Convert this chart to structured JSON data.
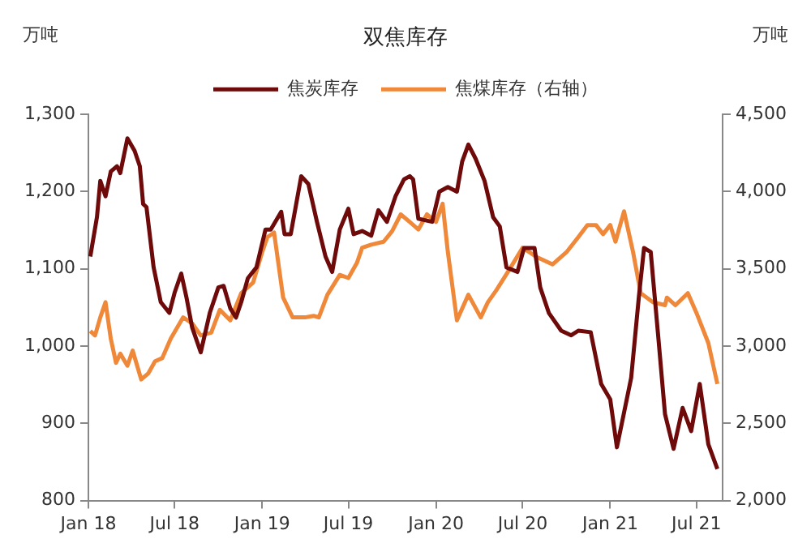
{
  "chart_data": {
    "type": "line",
    "title": "双焦库存",
    "ylabel": "万吨",
    "y2label": "万吨",
    "xlim": [
      "2018-01-01",
      "2021-08-25"
    ],
    "xticks": [
      {
        "value": "2018-01",
        "label": "Jan 18"
      },
      {
        "value": "2018-07",
        "label": "Jul 18"
      },
      {
        "value": "2019-01",
        "label": "Jan 19"
      },
      {
        "value": "2019-07",
        "label": "Jul 19"
      },
      {
        "value": "2020-01",
        "label": "Jan 20"
      },
      {
        "value": "2020-07",
        "label": "Jul 20"
      },
      {
        "value": "2021-01",
        "label": "Jan 21"
      },
      {
        "value": "2021-07",
        "label": "Jul 21"
      }
    ],
    "ylim": [
      800,
      1300
    ],
    "yticks": [
      800,
      900,
      {
        "value": 1000,
        "label": "1,000"
      },
      {
        "value": 1100,
        "label": "1,100"
      },
      {
        "value": 1200,
        "label": "1,200"
      },
      {
        "value": 1300,
        "label": "1,300"
      }
    ],
    "y2lim": [
      2000,
      4500
    ],
    "y2ticks": [
      {
        "value": 2000,
        "label": "2,000"
      },
      {
        "value": 2500,
        "label": "2,500"
      },
      {
        "value": 3000,
        "label": "3,000"
      },
      {
        "value": 3500,
        "label": "3,500"
      },
      {
        "value": 4000,
        "label": "4,000"
      },
      {
        "value": 4500,
        "label": "4,500"
      }
    ],
    "legend": "top",
    "grid": false,
    "marker": "none",
    "line_style": "solid",
    "series": [
      {
        "name": "焦炭库存",
        "color": "#6e0a0a",
        "x": [
          "2018-01-05",
          "2018-01-19",
          "2018-01-26",
          "2018-02-06",
          "2018-02-17",
          "2018-03-02",
          "2018-03-09",
          "2018-03-24",
          "2018-04-08",
          "2018-04-19",
          "2018-04-26",
          "2018-05-03",
          "2018-05-18",
          "2018-06-02",
          "2018-06-20",
          "2018-07-01",
          "2018-07-15",
          "2018-07-26",
          "2018-08-07",
          "2018-08-25",
          "2018-09-13",
          "2018-10-01",
          "2018-10-12",
          "2018-10-26",
          "2018-11-07",
          "2018-11-18",
          "2018-12-02",
          "2018-12-20",
          "2019-01-08",
          "2019-01-19",
          "2019-02-10",
          "2019-02-17",
          "2019-03-02",
          "2019-03-24",
          "2019-04-08",
          "2019-04-26",
          "2019-05-14",
          "2019-05-28",
          "2019-06-13",
          "2019-07-01",
          "2019-07-12",
          "2019-07-30",
          "2019-08-18",
          "2019-09-02",
          "2019-09-20",
          "2019-10-08",
          "2019-10-26",
          "2019-11-07",
          "2019-11-14",
          "2019-11-25",
          "2019-12-24",
          "2020-01-08",
          "2020-01-26",
          "2020-02-14",
          "2020-02-25",
          "2020-03-09",
          "2020-03-24",
          "2020-04-12",
          "2020-04-30",
          "2020-05-14",
          "2020-05-28",
          "2020-06-20",
          "2020-07-04",
          "2020-07-26",
          "2020-08-07",
          "2020-08-25",
          "2020-09-20",
          "2020-10-11",
          "2020-10-26",
          "2020-11-21",
          "2020-12-13",
          "2021-01-01",
          "2021-01-15",
          "2021-02-14",
          "2021-03-02",
          "2021-03-13",
          "2021-03-27",
          "2021-04-11",
          "2021-04-26",
          "2021-05-14",
          "2021-06-02",
          "2021-06-20",
          "2021-07-08",
          "2021-07-26",
          "2021-08-14"
        ],
        "values": [
          1116,
          1167,
          1214,
          1194,
          1226,
          1233,
          1224,
          1269,
          1253,
          1233,
          1184,
          1180,
          1102,
          1057,
          1043,
          1069,
          1094,
          1063,
          1024,
          992,
          1043,
          1076,
          1078,
          1049,
          1037,
          1057,
          1088,
          1102,
          1151,
          1151,
          1174,
          1145,
          1145,
          1220,
          1210,
          1161,
          1116,
          1096,
          1151,
          1178,
          1145,
          1149,
          1143,
          1176,
          1161,
          1194,
          1216,
          1220,
          1216,
          1165,
          1161,
          1200,
          1206,
          1200,
          1239,
          1261,
          1243,
          1214,
          1167,
          1155,
          1102,
          1096,
          1127,
          1127,
          1076,
          1043,
          1020,
          1014,
          1020,
          1018,
          951,
          931,
          869,
          959,
          1063,
          1127,
          1122,
          1018,
          912,
          867,
          920,
          890,
          951,
          873,
          841
        ]
      },
      {
        "name": "焦煤库存（右轴）",
        "color": "#f0883a",
        "axis": "y2",
        "x": [
          "2018-01-05",
          "2018-01-15",
          "2018-01-26",
          "2018-02-06",
          "2018-02-17",
          "2018-02-28",
          "2018-03-09",
          "2018-03-24",
          "2018-04-04",
          "2018-04-22",
          "2018-05-07",
          "2018-05-21",
          "2018-06-05",
          "2018-06-23",
          "2018-07-19",
          "2018-08-07",
          "2018-08-25",
          "2018-09-16",
          "2018-10-04",
          "2018-10-26",
          "2018-11-18",
          "2018-12-13",
          "2019-01-01",
          "2019-01-12",
          "2019-01-26",
          "2019-02-14",
          "2019-03-06",
          "2019-04-01",
          "2019-04-19",
          "2019-04-30",
          "2019-05-18",
          "2019-06-13",
          "2019-07-01",
          "2019-07-19",
          "2019-07-30",
          "2019-08-18",
          "2019-09-13",
          "2019-10-01",
          "2019-10-19",
          "2019-11-07",
          "2019-11-25",
          "2019-12-13",
          "2020-01-01",
          "2020-01-15",
          "2020-01-26",
          "2020-02-14",
          "2020-03-09",
          "2020-04-04",
          "2020-04-19",
          "2020-05-07",
          "2020-06-02",
          "2020-07-01",
          "2020-07-30",
          "2020-09-02",
          "2020-10-01",
          "2020-10-26",
          "2020-11-14",
          "2020-12-02",
          "2020-12-17",
          "2021-01-01",
          "2021-01-12",
          "2021-01-30",
          "2021-02-18",
          "2021-03-06",
          "2021-04-01",
          "2021-04-26",
          "2021-04-30",
          "2021-05-18",
          "2021-06-13",
          "2021-07-01",
          "2021-07-26",
          "2021-08-14"
        ],
        "values": [
          3098,
          3069,
          3186,
          3284,
          3049,
          2892,
          2951,
          2873,
          2971,
          2784,
          2824,
          2902,
          2922,
          3049,
          3186,
          3147,
          3069,
          3088,
          3235,
          3167,
          3343,
          3412,
          3608,
          3706,
          3735,
          3314,
          3186,
          3186,
          3196,
          3186,
          3333,
          3461,
          3441,
          3539,
          3637,
          3657,
          3676,
          3745,
          3853,
          3804,
          3755,
          3853,
          3804,
          3922,
          3608,
          3167,
          3333,
          3186,
          3284,
          3363,
          3490,
          3637,
          3578,
          3529,
          3608,
          3706,
          3784,
          3784,
          3725,
          3784,
          3676,
          3873,
          3608,
          3343,
          3284,
          3265,
          3314,
          3265,
          3343,
          3216,
          3020,
          2755
        ]
      }
    ]
  }
}
